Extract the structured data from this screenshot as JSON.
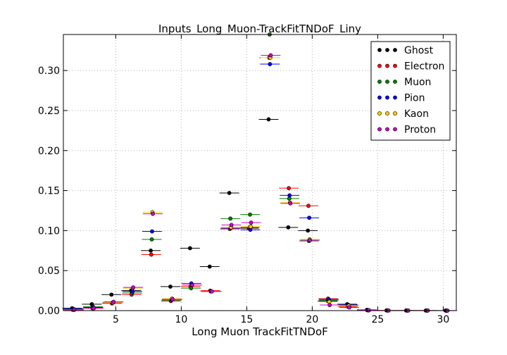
{
  "chart_data": {
    "type": "scatter",
    "title": "Inputs_Long_Muon-TrackFitTNDoF_Liny",
    "xlabel": "Long Muon TrackFitTNDoF",
    "ylabel": "",
    "xlim": [
      1,
      31
    ],
    "ylim": [
      0,
      0.345
    ],
    "x_ticks": [
      5,
      10,
      15,
      20,
      25,
      30
    ],
    "y_ticks": [
      0.0,
      0.05,
      0.1,
      0.15,
      0.2,
      0.25,
      0.3
    ],
    "x_tick_labels": [
      "5",
      "10",
      "15",
      "20",
      "25",
      "30"
    ],
    "y_tick_labels": [
      "0.00",
      "0.05",
      "0.10",
      "0.15",
      "0.20",
      "0.25",
      "0.30"
    ],
    "grid": true,
    "legend_position": "top-right",
    "bins": [
      [
        1.0,
        2.5
      ],
      [
        2.5,
        4.0
      ],
      [
        4.0,
        5.5
      ],
      [
        5.5,
        7.0
      ],
      [
        7.0,
        8.5
      ],
      [
        8.5,
        10.0
      ],
      [
        10.0,
        11.5
      ],
      [
        11.5,
        13.0
      ],
      [
        13.0,
        14.5
      ],
      [
        14.5,
        16.0
      ],
      [
        16.0,
        17.5
      ],
      [
        17.5,
        19.0
      ],
      [
        19.0,
        20.5
      ],
      [
        20.5,
        22.0
      ],
      [
        22.0,
        23.5
      ],
      [
        23.5,
        25.0
      ],
      [
        25.0,
        26.5
      ],
      [
        26.5,
        28.0
      ],
      [
        28.0,
        29.5
      ],
      [
        29.5,
        31.0
      ]
    ],
    "series": [
      {
        "name": "Ghost",
        "color": "#000000",
        "offset": -0.08,
        "values": [
          0.003,
          0.008,
          0.02,
          0.025,
          0.075,
          0.03,
          0.078,
          0.055,
          0.147,
          0.103,
          0.239,
          0.104,
          0.1,
          0.012,
          0.008,
          0.001,
          0.0003,
          0.0002,
          0.0001,
          0.0001
        ]
      },
      {
        "name": "Electron",
        "color": "#ff0000",
        "offset": -0.04,
        "values": [
          0.001,
          0.003,
          0.009,
          0.02,
          0.07,
          0.012,
          0.03,
          0.025,
          0.102,
          0.104,
          0.316,
          0.153,
          0.131,
          0.015,
          0.005,
          0.0005,
          0.0002,
          0.0001,
          0.0001,
          0.0
        ]
      },
      {
        "name": "Muon",
        "color": "#008000",
        "offset": 0.0,
        "values": [
          0.002,
          0.005,
          0.01,
          0.022,
          0.089,
          0.013,
          0.028,
          0.024,
          0.115,
          0.12,
          0.345,
          0.14,
          0.087,
          0.013,
          0.007,
          0.0005,
          0.0002,
          0.0001,
          0.0001,
          0.0
        ]
      },
      {
        "name": "Pion",
        "color": "#0000ff",
        "offset": 0.02,
        "values": [
          0.002,
          0.004,
          0.01,
          0.024,
          0.099,
          0.014,
          0.034,
          0.024,
          0.103,
          0.101,
          0.308,
          0.144,
          0.116,
          0.014,
          0.007,
          0.0006,
          0.0002,
          0.0001,
          0.0001,
          0.0
        ]
      },
      {
        "name": "Kaon",
        "color": "#ffcc00",
        "offset": 0.05,
        "values": [
          0.001,
          0.003,
          0.01,
          0.028,
          0.123,
          0.015,
          0.032,
          0.024,
          0.104,
          0.105,
          0.316,
          0.135,
          0.089,
          0.011,
          0.006,
          0.0005,
          0.0002,
          0.0001,
          0.0001,
          0.0
        ]
      },
      {
        "name": "Proton",
        "color": "#cc00cc",
        "offset": 0.08,
        "values": [
          0.001,
          0.003,
          0.011,
          0.029,
          0.121,
          0.014,
          0.032,
          0.024,
          0.107,
          0.11,
          0.319,
          0.134,
          0.088,
          0.007,
          0.004,
          0.0004,
          0.0001,
          0.0001,
          0.0001,
          0.0
        ]
      }
    ]
  }
}
